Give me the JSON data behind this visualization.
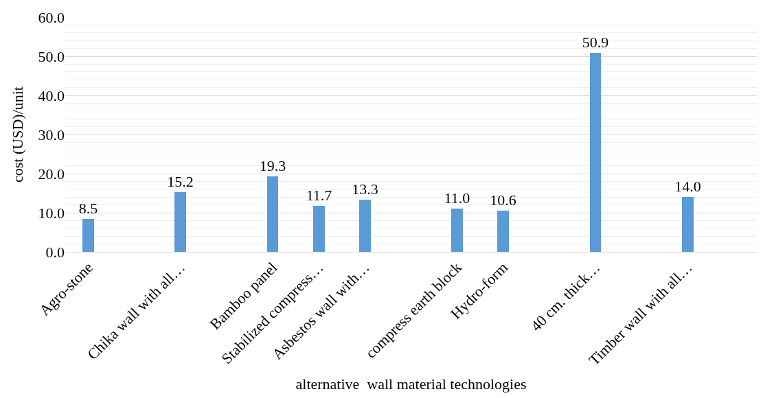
{
  "chart_data": {
    "type": "bar",
    "xlabel": "alternative  wall material technologies",
    "ylabel": "cost (USD)/unit",
    "categories": [
      "Agro-stone",
      null,
      "Chika wall with all…",
      null,
      "Bamboo panel",
      "Stabilized compress…",
      "Asbestos wall with…",
      null,
      "compress earth block",
      "Hydro-form",
      null,
      "40 cm. thick…",
      null,
      "Timber wall with all…",
      null
    ],
    "values": [
      8.5,
      null,
      15.2,
      null,
      19.3,
      11.7,
      13.3,
      null,
      11.0,
      10.6,
      null,
      50.9,
      null,
      14.0,
      null
    ],
    "value_labels": [
      "8.5",
      null,
      "15.2",
      null,
      "19.3",
      "11.7",
      "13.3",
      null,
      "11.0",
      "10.6",
      null,
      "50.9",
      null,
      "14.0",
      null
    ],
    "color": "#5b9bd5",
    "ylim": [
      0,
      60
    ],
    "yticks": [
      {
        "value": 0,
        "label": "0.0"
      },
      {
        "value": 10,
        "label": "10.0"
      },
      {
        "value": 20,
        "label": "20.0"
      },
      {
        "value": 30,
        "label": "30.0"
      },
      {
        "value": 40,
        "label": "40.0"
      },
      {
        "value": 50,
        "label": "50.0"
      },
      {
        "value": 60,
        "label": "60.0"
      }
    ],
    "grid": "y"
  }
}
